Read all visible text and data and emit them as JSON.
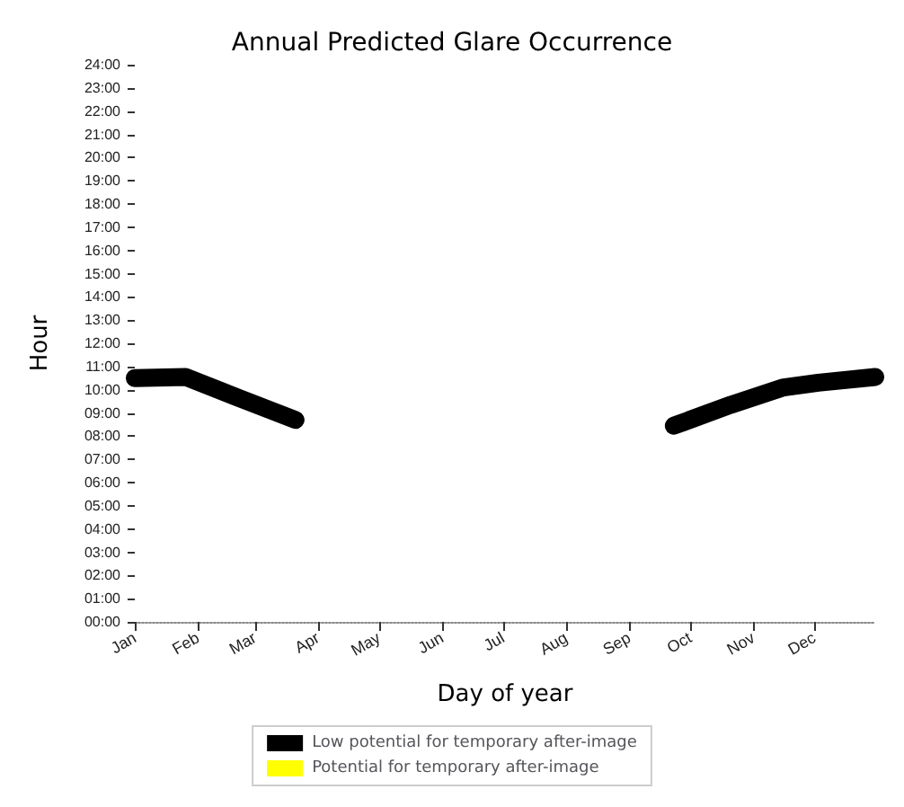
{
  "chart_data": {
    "type": "line",
    "title": "Annual Predicted Glare Occurrence",
    "xlabel": "Day of year",
    "ylabel": "Hour",
    "xlim": [
      "--01-01",
      "--12-31"
    ],
    "xticks": [
      {
        "value": "--01-01",
        "label": "Jan"
      },
      {
        "value": "--02-01",
        "label": "Feb"
      },
      {
        "value": "--03-01",
        "label": "Mar"
      },
      {
        "value": "--04-01",
        "label": "Apr"
      },
      {
        "value": "--05-01",
        "label": "May"
      },
      {
        "value": "--06-01",
        "label": "Jun"
      },
      {
        "value": "--07-01",
        "label": "Jul"
      },
      {
        "value": "--08-01",
        "label": "Aug"
      },
      {
        "value": "--09-01",
        "label": "Sep"
      },
      {
        "value": "--10-01",
        "label": "Oct"
      },
      {
        "value": "--11-01",
        "label": "Nov"
      },
      {
        "value": "--12-01",
        "label": "Dec"
      }
    ],
    "ylim": [
      0,
      24
    ],
    "yticks": [
      {
        "value": 0,
        "label": "00:00"
      },
      {
        "value": 1,
        "label": "01:00"
      },
      {
        "value": 2,
        "label": "02:00"
      },
      {
        "value": 3,
        "label": "03:00"
      },
      {
        "value": 4,
        "label": "04:00"
      },
      {
        "value": 5,
        "label": "05:00"
      },
      {
        "value": 6,
        "label": "06:00"
      },
      {
        "value": 7,
        "label": "07:00"
      },
      {
        "value": 8,
        "label": "08:00"
      },
      {
        "value": 9,
        "label": "09:00"
      },
      {
        "value": 10,
        "label": "10:00"
      },
      {
        "value": 11,
        "label": "11:00"
      },
      {
        "value": 12,
        "label": "12:00"
      },
      {
        "value": 13,
        "label": "13:00"
      },
      {
        "value": 14,
        "label": "14:00"
      },
      {
        "value": 15,
        "label": "15:00"
      },
      {
        "value": 16,
        "label": "16:00"
      },
      {
        "value": 17,
        "label": "17:00"
      },
      {
        "value": 18,
        "label": "18:00"
      },
      {
        "value": 19,
        "label": "19:00"
      },
      {
        "value": 20,
        "label": "20:00"
      },
      {
        "value": 21,
        "label": "21:00"
      },
      {
        "value": 22,
        "label": "22:00"
      },
      {
        "value": 23,
        "label": "23:00"
      },
      {
        "value": 24,
        "label": "24:00"
      }
    ],
    "series": [
      {
        "name": "Low potential for temporary after-image",
        "color": "#000000",
        "x": [
          "--01-01",
          "--01-26",
          "--02-21",
          "--03-21",
          "--06-19",
          "--09-23",
          "--10-21",
          "--11-16",
          "--12-03",
          "--12-31"
        ],
        "values": [
          10.5,
          10.55,
          9.65,
          8.7,
          null,
          8.45,
          9.35,
          10.1,
          10.3,
          10.55
        ]
      },
      {
        "name": "Potential for temporary after-image",
        "color": "#ffff00"
      }
    ],
    "legend": "bottom",
    "grid": false
  }
}
